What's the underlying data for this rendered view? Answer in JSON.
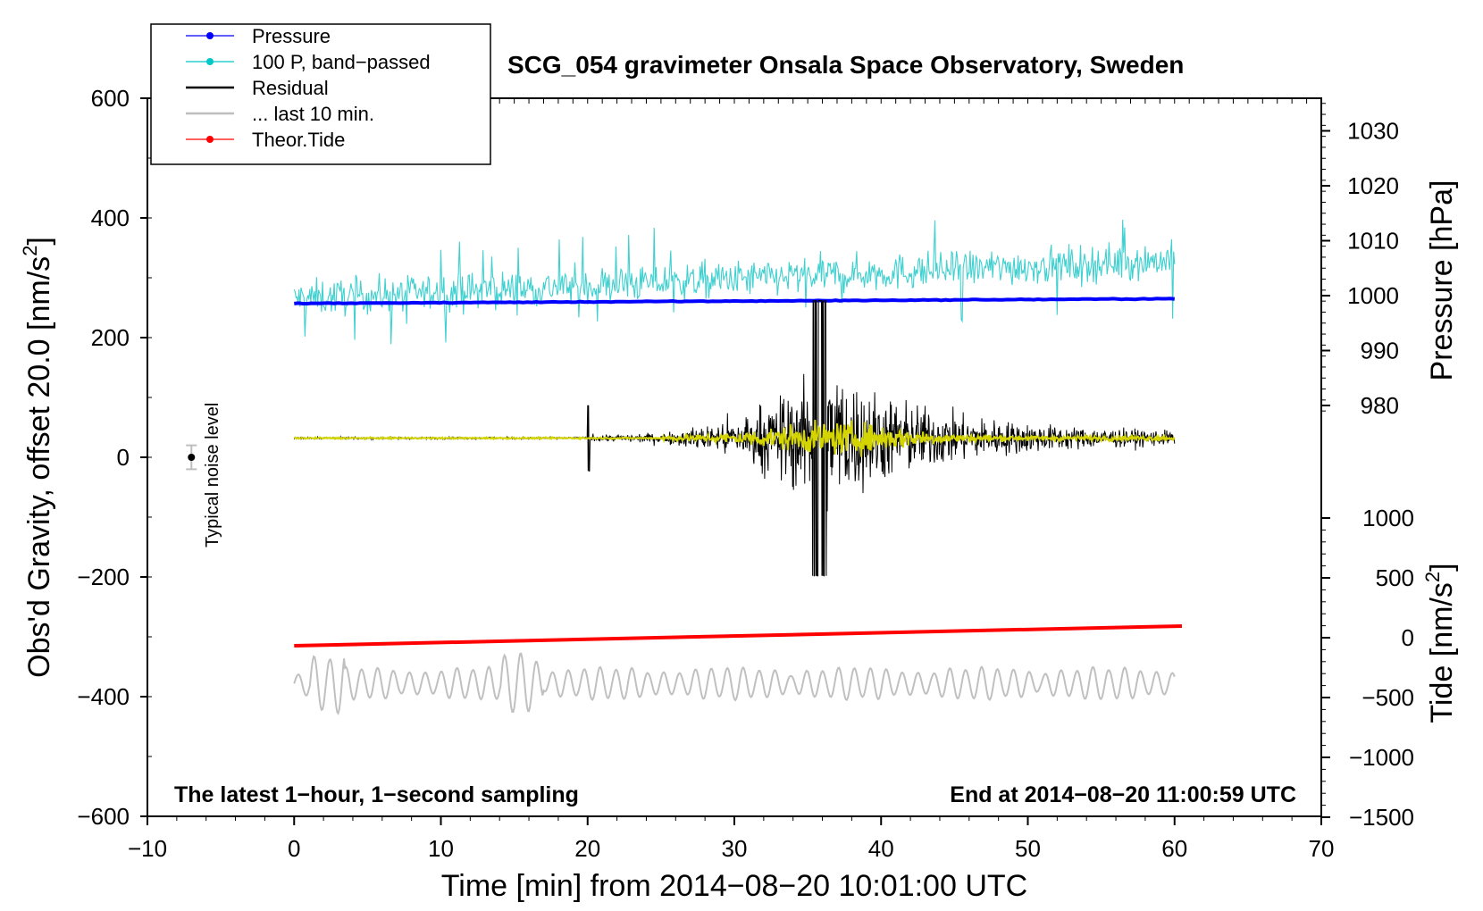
{
  "chart_data": {
    "type": "line",
    "title": "SCG_054 gravimeter Onsala Space Observatory, Sweden",
    "xlabel": "Time [min] from 2014−08−20 10:01:00 UTC",
    "ylabel": "Obs'd Gravity, offset 20.0 [nm/s",
    "ylabel_sup": "2",
    "ylabel_end": "]",
    "y2label_pressure": "Pressure [hPa]",
    "y2label_tide": "Tide [nm/s",
    "y2label_tide_sup": "2",
    "y2label_tide_end": "]",
    "xlim": [
      -10,
      70
    ],
    "ylim": [
      -600,
      600
    ],
    "xticks": [
      -10,
      0,
      10,
      20,
      30,
      40,
      50,
      60,
      70
    ],
    "xtick_labels": [
      "−10",
      "0",
      "10",
      "20",
      "30",
      "40",
      "50",
      "60",
      "70"
    ],
    "yticks": [
      600,
      400,
      200,
      0,
      -200,
      -400,
      -600
    ],
    "ytick_labels": [
      "600",
      "400",
      "200",
      "0",
      "−200",
      "−400",
      "−600"
    ],
    "pressure_ticks": [
      1030,
      1020,
      1010,
      1000,
      990,
      980
    ],
    "pressure_tick_labels": [
      "1030",
      "1020",
      "1010",
      "1000",
      "990",
      "980"
    ],
    "tide_ticks": [
      1000,
      500,
      0,
      -500,
      -1000,
      -1500
    ],
    "tide_tick_labels": [
      "1000",
      "500",
      "0",
      "−500",
      "−1000",
      "−1500"
    ],
    "note_left": "The latest 1−hour, 1−second sampling",
    "note_right": "End at 2014−08−20 11:00:59 UTC",
    "noise_label": "Typical noise level",
    "noise_point": {
      "x": -7,
      "y": 0,
      "err": 20
    },
    "legend": [
      {
        "label": "Pressure",
        "color": "#0000ff",
        "marker": true
      },
      {
        "label": "100 P, band−passed",
        "color": "#00c8c8",
        "marker": true
      },
      {
        "label": "Residual",
        "color": "#000000",
        "marker": false
      },
      {
        "label": "... last 10 min.",
        "color": "#bebebe",
        "marker": false
      },
      {
        "label": "Theor.Tide",
        "color": "#ff0000",
        "marker": true
      }
    ],
    "series": [
      {
        "name": "Pressure",
        "color": "#0000ff",
        "y_start": 257,
        "y_end": 265,
        "x_start": 0,
        "x_end": 60
      },
      {
        "name": "100 P, band-passed",
        "color": "#40d0d0",
        "center_start": 265,
        "center_end": 330,
        "amplitude": 30,
        "x_start": 0,
        "x_end": 60
      },
      {
        "name": "Residual",
        "color": "#000000",
        "baseline": 32,
        "onset": 20,
        "peak": 36,
        "peak_amplitude": 160,
        "x_start": 0,
        "x_end": 60
      },
      {
        "name": "Residual (smoothed)",
        "color": "#d4d400",
        "baseline": 32,
        "x_start": 0,
        "x_end": 60
      },
      {
        "name": "Theor.Tide",
        "color": "#ff0000",
        "y_start": -315,
        "y_end": -282,
        "x_start": 0,
        "x_end": 60.5
      },
      {
        "name": "... last 10 min.",
        "color": "#c0c0c0",
        "center": -378,
        "amplitude": 20,
        "x_start": 0,
        "x_end": 60
      }
    ]
  }
}
